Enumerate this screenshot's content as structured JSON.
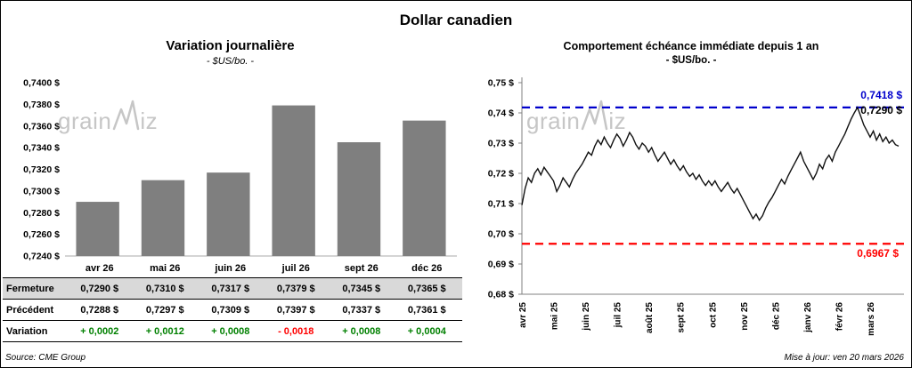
{
  "title": "Dollar canadien",
  "source": "Source: CME Group",
  "updated": "Mise à jour: ven 20 mars 2026",
  "watermark": {
    "text_before_w": "grain",
    "text_after_w": "iz",
    "full_text": "grainwiz"
  },
  "left_chart": {
    "title": "Variation journalière",
    "subtitle": "- $US/bo. -"
  },
  "right_chart": {
    "title": "Comportement échéance immédiate depuis 1 an",
    "subtitle": "- $US/bo. -"
  },
  "table": {
    "categories": [
      "avr 26",
      "mai 26",
      "juin 26",
      "juil 26",
      "sept 26",
      "déc 26"
    ],
    "rows": [
      {
        "label": "Fermeture",
        "style": "close",
        "values": [
          "0,7290 $",
          "0,7310 $",
          "0,7317 $",
          "0,7379 $",
          "0,7345 $",
          "0,7365 $"
        ]
      },
      {
        "label": "Précédent",
        "style": "previous",
        "values": [
          "0,7288 $",
          "0,7297 $",
          "0,7309 $",
          "0,7397 $",
          "0,7337 $",
          "0,7361 $"
        ]
      },
      {
        "label": "Variation",
        "style": "variation",
        "values": [
          "+ 0,0002",
          "+ 0,0012",
          "+ 0,0008",
          "- 0,0018",
          "+ 0,0008",
          "+ 0,0004"
        ]
      }
    ]
  },
  "chart_data": [
    {
      "type": "bar",
      "title": "Variation journalière",
      "subtitle": "- $US/bo. -",
      "categories": [
        "avr 26",
        "mai 26",
        "juin 26",
        "juil 26",
        "sept 26",
        "déc 26"
      ],
      "values": [
        0.729,
        0.731,
        0.7317,
        0.7379,
        0.7345,
        0.7365
      ],
      "ylim": [
        0.724,
        0.74
      ],
      "ytick_step": 0.002,
      "ytick_labels": [
        "0,7240 $",
        "0,7260 $",
        "0,7280 $",
        "0,7300 $",
        "0,7320 $",
        "0,7340 $",
        "0,7360 $",
        "0,7380 $",
        "0,7400 $"
      ],
      "bar_color": "#7f7f7f",
      "grid": false,
      "legend": false
    },
    {
      "type": "line",
      "title": "Comportement échéance immédiate depuis 1 an",
      "subtitle": "- $US/bo. -",
      "x_labels": [
        "avr 25",
        "mai 25",
        "juin 25",
        "juil 25",
        "août 25",
        "sept 25",
        "oct 25",
        "nov 25",
        "déc 25",
        "janv 26",
        "févr 26",
        "mars 26"
      ],
      "points_per_month": 10,
      "values": [
        0.7095,
        0.715,
        0.7185,
        0.717,
        0.72,
        0.7215,
        0.7195,
        0.722,
        0.7205,
        0.719,
        0.7175,
        0.714,
        0.716,
        0.7185,
        0.717,
        0.7155,
        0.718,
        0.72,
        0.7215,
        0.723,
        0.725,
        0.727,
        0.726,
        0.729,
        0.731,
        0.7295,
        0.732,
        0.73,
        0.7285,
        0.731,
        0.733,
        0.7315,
        0.729,
        0.731,
        0.7335,
        0.732,
        0.7295,
        0.728,
        0.73,
        0.729,
        0.727,
        0.7285,
        0.726,
        0.724,
        0.7255,
        0.727,
        0.725,
        0.723,
        0.7245,
        0.7225,
        0.721,
        0.7225,
        0.7205,
        0.719,
        0.72,
        0.718,
        0.7195,
        0.7175,
        0.716,
        0.7175,
        0.716,
        0.7175,
        0.7155,
        0.714,
        0.7155,
        0.717,
        0.715,
        0.7135,
        0.715,
        0.713,
        0.711,
        0.709,
        0.707,
        0.705,
        0.7065,
        0.7045,
        0.706,
        0.7085,
        0.7105,
        0.712,
        0.714,
        0.716,
        0.718,
        0.7165,
        0.719,
        0.721,
        0.723,
        0.725,
        0.727,
        0.724,
        0.722,
        0.72,
        0.718,
        0.72,
        0.723,
        0.7215,
        0.7245,
        0.726,
        0.724,
        0.727,
        0.729,
        0.731,
        0.733,
        0.7355,
        0.738,
        0.74,
        0.7418,
        0.739,
        0.736,
        0.734,
        0.732,
        0.734,
        0.731,
        0.733,
        0.7305,
        0.732,
        0.73,
        0.731,
        0.7295,
        0.729
      ],
      "ylim": [
        0.68,
        0.75
      ],
      "ytick_step": 0.01,
      "ytick_labels": [
        "0,68 $",
        "0,69 $",
        "0,70 $",
        "0,71 $",
        "0,72 $",
        "0,73 $",
        "0,74 $",
        "0,75 $"
      ],
      "line_color": "#111111",
      "grid": false,
      "legend": false,
      "annotations": [
        {
          "value": 0.7418,
          "label": "0,7418 $",
          "color": "#0000cc",
          "style": "dashed"
        },
        {
          "value": 0.6967,
          "label": "0,6967 $",
          "color": "#ff0000",
          "style": "dashed"
        }
      ],
      "last_label": {
        "value": 0.729,
        "label": "0,7290 $",
        "color": "#000000"
      }
    }
  ]
}
